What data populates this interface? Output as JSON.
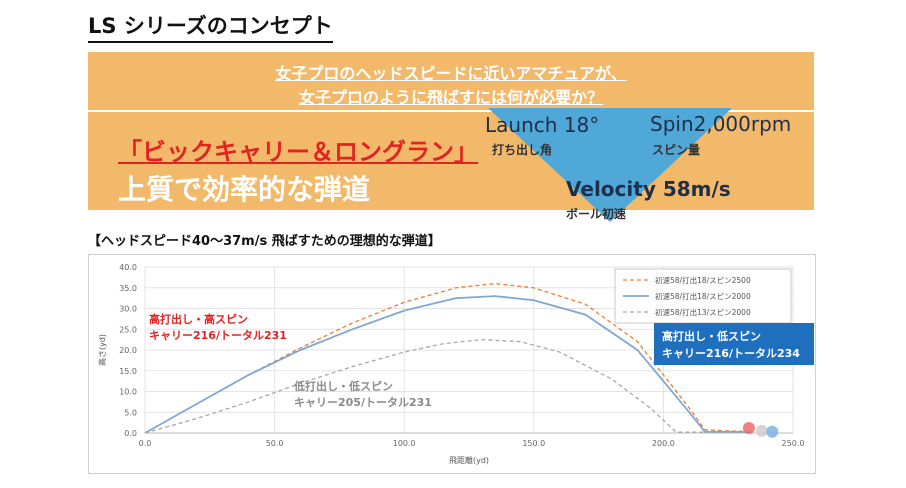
{
  "page": {
    "title": "LS シリーズのコンセプト",
    "question_line1": "女子プロのヘッドスピードに近いアマチュアが、",
    "question_line2": "女子プロのように飛ばすには何が必要か？",
    "big_carry": "「ビックキャリー＆ロングラン」",
    "quality": "上質で効率的な弾道",
    "launch": "Launch 18°",
    "launch_sub": "打ち出し角",
    "spin": "Spin2,000rpm",
    "spin_sub": "スピン量",
    "velocity": "Velocity  58m/s",
    "velocity_sub": "ボール初速",
    "chart_heading": "【ヘッドスピード40～37m/s 飛ばすための理想的な弾道】",
    "colors": {
      "banner": "#f2b96a",
      "triangle": "#4fa8d8",
      "red": "#e32222",
      "blue_box": "#1f6fbf"
    }
  },
  "chart_data": {
    "type": "line",
    "xlabel": "飛距離(yd)",
    "ylabel": "高さ(yd)",
    "xlim": [
      0,
      250
    ],
    "ylim": [
      0,
      40
    ],
    "xticks": [
      "0.0",
      "50.0",
      "100.0",
      "150.0",
      "200.0",
      "250.0"
    ],
    "yticks": [
      "0.0",
      "5.0",
      "10.0",
      "15.0",
      "20.0",
      "25.0",
      "30.0",
      "35.0",
      "40.0"
    ],
    "grid": true,
    "legend_position": "top-right",
    "series": [
      {
        "name": "初速58/打出18/スピン2500",
        "color": "#f07a30",
        "dash": "4,3",
        "x": [
          0,
          20,
          40,
          60,
          80,
          100,
          120,
          135,
          150,
          170,
          190,
          210,
          216,
          225,
          231
        ],
        "y": [
          0,
          7,
          14,
          20.5,
          26.5,
          31.5,
          35,
          36,
          35,
          31,
          22,
          6,
          0.8,
          0.5,
          0.4
        ]
      },
      {
        "name": "初速58/打出18/スピン2000",
        "color": "#7fa7d4",
        "dash": "",
        "x": [
          0,
          20,
          40,
          60,
          80,
          100,
          120,
          135,
          150,
          170,
          190,
          210,
          216,
          225,
          234
        ],
        "y": [
          0,
          7,
          14,
          20,
          25,
          29.5,
          32.5,
          33,
          32,
          28.5,
          20,
          5,
          0.3,
          0.3,
          0.2
        ]
      },
      {
        "name": "初速58/打出13/スピン2000",
        "color": "#a8a8a8",
        "dash": "4,3",
        "x": [
          0,
          20,
          40,
          60,
          80,
          100,
          115,
          130,
          145,
          160,
          180,
          195,
          205,
          215,
          231
        ],
        "y": [
          0,
          3.5,
          7.5,
          12,
          16,
          19.5,
          21.5,
          22.5,
          22,
          19.5,
          13,
          6,
          0.2,
          0.2,
          0.1
        ]
      }
    ],
    "endpoints": [
      {
        "x": 233,
        "y": 1.2,
        "color": "#f06a6a"
      },
      {
        "x": 238,
        "y": 0.5,
        "color": "#cccccc"
      },
      {
        "x": 242,
        "y": 0.3,
        "color": "#7fb0e0"
      }
    ],
    "annotations": [
      {
        "line1": "高打出し・高スピン",
        "line2": "キャリー216/トータル231",
        "color": "#e32222"
      },
      {
        "line1": "低打出し・低スピン",
        "line2": "キャリー205/トータル231",
        "color": "#8a8a8a"
      },
      {
        "line1": "高打出し・低スピン",
        "line2": "キャリー216/トータル234",
        "color": "#ffffff",
        "background": "#1f6fbf"
      }
    ]
  }
}
